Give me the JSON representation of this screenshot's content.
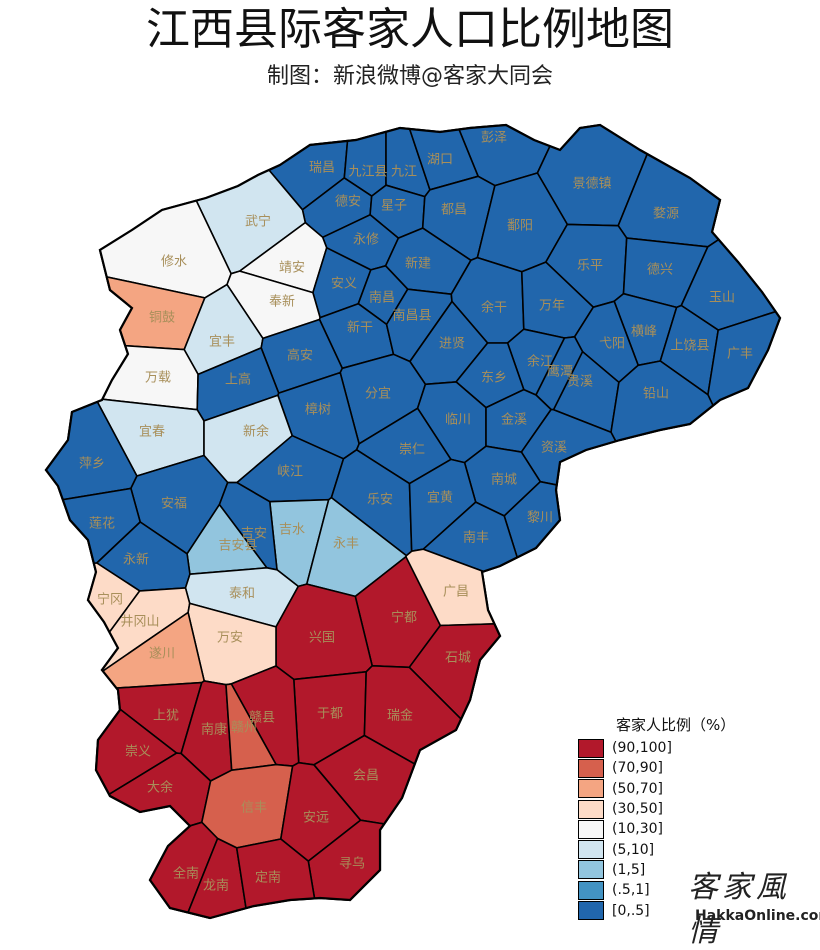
{
  "title": "江西县际客家人口比例地图",
  "subtitle": "制图：新浪微博@客家大同会",
  "legend": {
    "title": "客家人比例（%）",
    "items": [
      {
        "label": "(90,100]",
        "color": "#b2182b"
      },
      {
        "label": "(70,90]",
        "color": "#d6604d"
      },
      {
        "label": "(50,70]",
        "color": "#f4a582"
      },
      {
        "label": "(30,50]",
        "color": "#fddbc7"
      },
      {
        "label": "(10,30]",
        "color": "#f7f7f7"
      },
      {
        "label": "(5,10]",
        "color": "#d1e5f0"
      },
      {
        "label": "(1,5]",
        "color": "#92c5de"
      },
      {
        "label": "(.5,1]",
        "color": "#4393c3"
      },
      {
        "label": "[0,.5]",
        "color": "#2166ac"
      }
    ]
  },
  "counties": [
    {
      "name": "彭泽",
      "class": "[0,.5]"
    },
    {
      "name": "瑞昌",
      "class": "[0,.5]"
    },
    {
      "name": "九江县",
      "class": "[0,.5]"
    },
    {
      "name": "九江",
      "class": "[0,.5]"
    },
    {
      "name": "湖口",
      "class": "[0,.5]"
    },
    {
      "name": "景德镇",
      "class": "[0,.5]"
    },
    {
      "name": "德安",
      "class": "[0,.5]"
    },
    {
      "name": "星子",
      "class": "[0,.5]"
    },
    {
      "name": "都昌",
      "class": "[0,.5]"
    },
    {
      "name": "鄱阳",
      "class": "[0,.5]"
    },
    {
      "name": "婺源",
      "class": "[0,.5]"
    },
    {
      "name": "武宁",
      "class": "(5,10]"
    },
    {
      "name": "永修",
      "class": "[0,.5]"
    },
    {
      "name": "修水",
      "class": "(10,30]"
    },
    {
      "name": "靖安",
      "class": "(10,30]"
    },
    {
      "name": "新建",
      "class": "[0,.5]"
    },
    {
      "name": "乐平",
      "class": "[0,.5]"
    },
    {
      "name": "德兴",
      "class": "[0,.5]"
    },
    {
      "name": "安义",
      "class": "[0,.5]"
    },
    {
      "name": "奉新",
      "class": "(10,30]"
    },
    {
      "name": "南昌",
      "class": "[0,.5]"
    },
    {
      "name": "玉山",
      "class": "[0,.5]"
    },
    {
      "name": "铜鼓",
      "class": "(50,70]"
    },
    {
      "name": "新干",
      "class": "[0,.5]"
    },
    {
      "name": "南昌县",
      "class": "[0,.5]"
    },
    {
      "name": "余干",
      "class": "[0,.5]"
    },
    {
      "name": "万年",
      "class": "[0,.5]"
    },
    {
      "name": "横峰",
      "class": "[0,.5]"
    },
    {
      "name": "宜丰",
      "class": "(5,10]"
    },
    {
      "name": "进贤",
      "class": "[0,.5]"
    },
    {
      "name": "弋阳",
      "class": "[0,.5]"
    },
    {
      "name": "上饶县",
      "class": "[0,.5]"
    },
    {
      "name": "广丰",
      "class": "[0,.5]"
    },
    {
      "name": "高安",
      "class": "[0,.5]"
    },
    {
      "name": "余江",
      "class": "[0,.5]"
    },
    {
      "name": "万载",
      "class": "(10,30]"
    },
    {
      "name": "上高",
      "class": "[0,.5]"
    },
    {
      "name": "东乡",
      "class": "[0,.5]"
    },
    {
      "name": "鹰潭",
      "class": "[0,.5]"
    },
    {
      "name": "贵溪",
      "class": "[0,.5]"
    },
    {
      "name": "分宜",
      "class": "[0,.5]"
    },
    {
      "name": "铅山",
      "class": "[0,.5]"
    },
    {
      "name": "樟树",
      "class": "[0,.5]"
    },
    {
      "name": "宜春",
      "class": "(5,10]"
    },
    {
      "name": "新余",
      "class": "(5,10]"
    },
    {
      "name": "临川",
      "class": "[0,.5]"
    },
    {
      "name": "金溪",
      "class": "[0,.5]"
    },
    {
      "name": "萍乡",
      "class": "[0,.5]"
    },
    {
      "name": "崇仁",
      "class": "[0,.5]"
    },
    {
      "name": "资溪",
      "class": "[0,.5]"
    },
    {
      "name": "峡江",
      "class": "[0,.5]"
    },
    {
      "name": "南城",
      "class": "[0,.5]"
    },
    {
      "name": "乐安",
      "class": "[0,.5]"
    },
    {
      "name": "宜黄",
      "class": "[0,.5]"
    },
    {
      "name": "安福",
      "class": "[0,.5]"
    },
    {
      "name": "黎川",
      "class": "[0,.5]"
    },
    {
      "name": "莲花",
      "class": "[0,.5]"
    },
    {
      "name": "吉水",
      "class": "(1,5]"
    },
    {
      "name": "吉安",
      "class": "[0,.5]"
    },
    {
      "name": "永丰",
      "class": "(1,5]"
    },
    {
      "name": "南丰",
      "class": "[0,.5]"
    },
    {
      "name": "吉安县",
      "class": "(1,5]"
    },
    {
      "name": "永新",
      "class": "[0,.5]"
    },
    {
      "name": "广昌",
      "class": "(30,50]"
    },
    {
      "name": "泰和",
      "class": "(5,10]"
    },
    {
      "name": "宁冈",
      "class": "(30,50]"
    },
    {
      "name": "宁都",
      "class": "(90,100]"
    },
    {
      "name": "井冈山",
      "class": "(30,50]"
    },
    {
      "name": "兴国",
      "class": "(90,100]"
    },
    {
      "name": "万安",
      "class": "(30,50]"
    },
    {
      "name": "遂川",
      "class": "(50,70]"
    },
    {
      "name": "石城",
      "class": "(90,100]"
    },
    {
      "name": "上犹",
      "class": "(90,100]"
    },
    {
      "name": "于都",
      "class": "(90,100]"
    },
    {
      "name": "赣县",
      "class": "(90,100]"
    },
    {
      "name": "南康",
      "class": "(90,100]"
    },
    {
      "name": "赣州",
      "class": "(70,90]"
    },
    {
      "name": "瑞金",
      "class": "(90,100]"
    },
    {
      "name": "崇义",
      "class": "(90,100]"
    },
    {
      "name": "会昌",
      "class": "(90,100]"
    },
    {
      "name": "大余",
      "class": "(90,100]"
    },
    {
      "name": "信丰",
      "class": "(70,90]"
    },
    {
      "name": "安远",
      "class": "(90,100]"
    },
    {
      "name": "寻乌",
      "class": "(90,100]"
    },
    {
      "name": "全南",
      "class": "(90,100]"
    },
    {
      "name": "龙南",
      "class": "(90,100]"
    },
    {
      "name": "定南",
      "class": "(90,100]"
    }
  ],
  "watermark": {
    "cn": "客家風情",
    "en": "HakkaOnline.com"
  }
}
